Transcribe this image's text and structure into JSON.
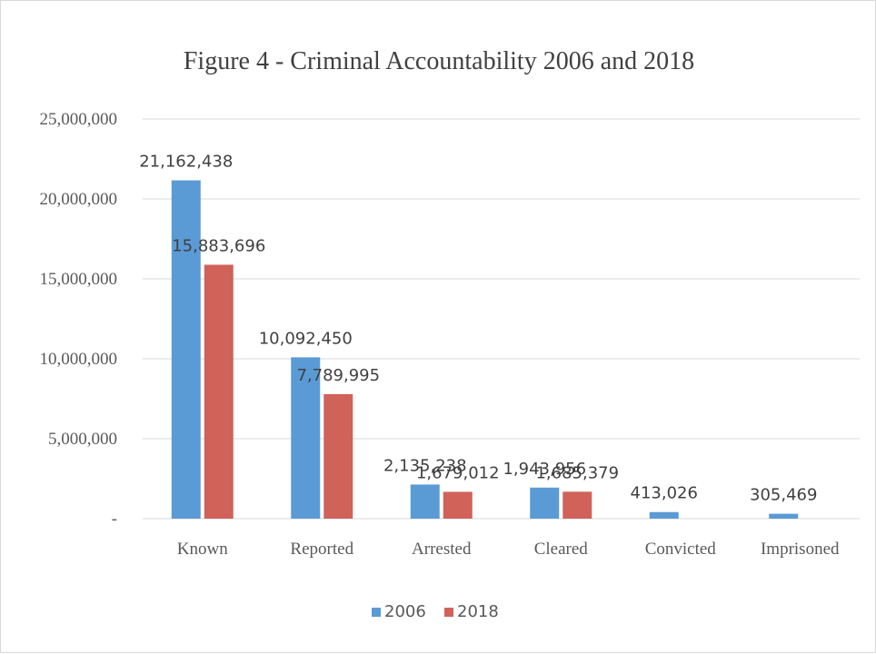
{
  "chart_data": {
    "type": "bar",
    "title": "Figure 4 - Criminal Accountability 2006 and 2018",
    "categories": [
      "Known",
      "Reported",
      "Arrested",
      "Cleared",
      "Convicted",
      "Imprisoned"
    ],
    "series": [
      {
        "name": "2006",
        "color": "#5B9BD5",
        "values": [
          21162438,
          10092450,
          2135238,
          1943956,
          413026,
          305469
        ],
        "labels": [
          "21,162,438",
          "10,092,450",
          "2,135,238",
          "1,943,956",
          "413,026",
          "305,469"
        ]
      },
      {
        "name": "2018",
        "color": "#D0625A",
        "values": [
          15883696,
          7789995,
          1679012,
          1685379,
          null,
          null
        ],
        "labels": [
          "15,883,696",
          "7,789,995",
          "1,679,012",
          "1,685,379",
          "",
          ""
        ]
      }
    ],
    "y_ticks": [
      0,
      5000000,
      10000000,
      15000000,
      20000000,
      25000000
    ],
    "y_tick_labels": [
      "-",
      "5,000,000",
      "10,000,000",
      "15,000,000",
      "20,000,000",
      "25,000,000"
    ],
    "ylim": [
      0,
      25000000
    ],
    "xlabel": "",
    "ylabel": "",
    "grid": true,
    "legend_position": "bottom"
  }
}
